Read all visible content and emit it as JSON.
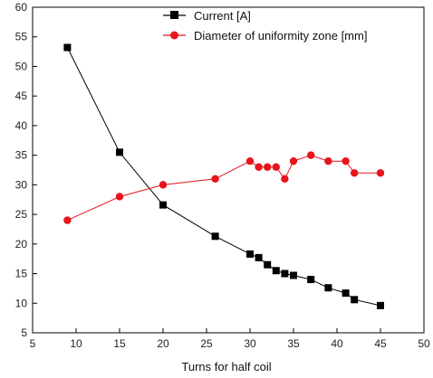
{
  "chart_data": {
    "type": "line",
    "title": "",
    "xlabel": "Turns for half coil",
    "ylabel": "",
    "xlim": [
      5,
      50
    ],
    "ylim": [
      5,
      60
    ],
    "xticks": [
      5,
      10,
      15,
      20,
      25,
      30,
      35,
      40,
      45,
      50
    ],
    "yticks": [
      5,
      10,
      15,
      20,
      25,
      30,
      35,
      40,
      45,
      50,
      55,
      60
    ],
    "grid": false,
    "legend_position": "top-right",
    "series": [
      {
        "name": "Current [A]",
        "color": "#000000",
        "marker": "square",
        "x": [
          9,
          15,
          20,
          26,
          30,
          31,
          32,
          33,
          34,
          35,
          37,
          39,
          41,
          42,
          45
        ],
        "y": [
          53.2,
          35.5,
          26.6,
          21.3,
          18.3,
          17.7,
          16.5,
          15.5,
          15.0,
          14.7,
          14.0,
          12.6,
          11.7,
          10.6,
          9.6
        ]
      },
      {
        "name": "Diameter of uniformity zone [mm]",
        "color": "#e8141b",
        "marker": "circle",
        "x": [
          9,
          15,
          20,
          26,
          30,
          31,
          32,
          33,
          34,
          35,
          37,
          39,
          41,
          42,
          45
        ],
        "y": [
          24,
          28,
          30,
          31,
          34,
          33,
          33,
          33,
          31,
          34,
          35,
          34,
          34,
          32,
          32
        ]
      }
    ]
  }
}
